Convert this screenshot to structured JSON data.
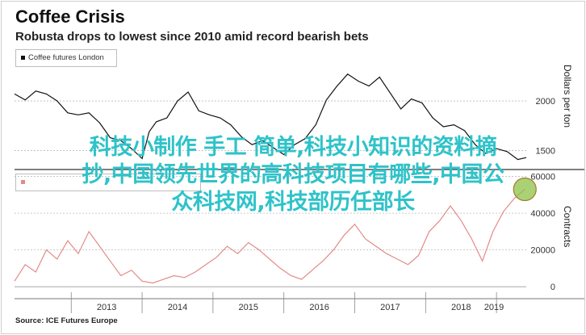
{
  "header": {
    "title": "Coffee Crisis",
    "subtitle": "Robusta drops to lowest since 2010 amid record bearish bets",
    "source": "Source: ICE Futures Europe"
  },
  "overlay": {
    "lines": [
      "科技小制作 手工 简单,科技小知识的资料摘",
      "抄,中国领先世界的高科技项目有哪些,中国公",
      "众科技网,科技部历任部长"
    ]
  },
  "colors": {
    "price_line": "#111111",
    "contracts_line": "#e38a8a",
    "overlay_text": "#2ec3c9",
    "highlight_circle": "#8fc24a"
  },
  "chart_data": [
    {
      "type": "line",
      "series": [
        {
          "name": "Coffee futures London",
          "x": [
            2012.2,
            2012.35,
            2012.5,
            2012.65,
            2012.8,
            2012.95,
            2013.1,
            2013.25,
            2013.4,
            2013.55,
            2013.7,
            2013.85,
            2014.0,
            2014.1,
            2014.2,
            2014.35,
            2014.5,
            2014.65,
            2014.8,
            2014.95,
            2015.1,
            2015.25,
            2015.4,
            2015.55,
            2015.7,
            2015.85,
            2016.0,
            2016.15,
            2016.3,
            2016.45,
            2016.6,
            2016.75,
            2016.9,
            2017.05,
            2017.2,
            2017.35,
            2017.5,
            2017.65,
            2017.8,
            2017.95,
            2018.1,
            2018.25,
            2018.4,
            2018.55,
            2018.7,
            2018.85,
            2019.0,
            2019.15,
            2019.3,
            2019.42
          ],
          "values": [
            2070,
            2010,
            2100,
            2070,
            2000,
            1880,
            1860,
            1880,
            1780,
            1630,
            1600,
            1520,
            1420,
            1690,
            1790,
            1830,
            2000,
            2090,
            1900,
            1860,
            1830,
            1760,
            1640,
            1560,
            1600,
            1530,
            1460,
            1560,
            1620,
            1760,
            2010,
            2150,
            2270,
            2200,
            2150,
            2240,
            2080,
            1920,
            2020,
            1980,
            1830,
            1740,
            1760,
            1700,
            1560,
            1470,
            1520,
            1490,
            1410,
            1430
          ]
        }
      ],
      "ylabel": "Dollars per ton",
      "yticks": [
        1500,
        2000
      ],
      "ylim": [
        1350,
        2350
      ]
    },
    {
      "type": "line",
      "series": [
        {
          "name": "",
          "x": [
            2012.2,
            2012.35,
            2012.5,
            2012.65,
            2012.8,
            2012.95,
            2013.1,
            2013.25,
            2013.4,
            2013.55,
            2013.7,
            2013.85,
            2014.0,
            2014.15,
            2014.3,
            2014.45,
            2014.6,
            2014.75,
            2014.9,
            2015.05,
            2015.2,
            2015.35,
            2015.5,
            2015.65,
            2015.8,
            2015.95,
            2016.1,
            2016.25,
            2016.4,
            2016.55,
            2016.7,
            2016.85,
            2017.0,
            2017.15,
            2017.3,
            2017.45,
            2017.6,
            2017.75,
            2017.9,
            2018.05,
            2018.2,
            2018.35,
            2018.5,
            2018.65,
            2018.8,
            2018.95,
            2019.1,
            2019.25,
            2019.4
          ],
          "values": [
            3000,
            12000,
            8000,
            20000,
            15000,
            25000,
            18000,
            30000,
            22000,
            14000,
            6000,
            9000,
            3000,
            2000,
            4000,
            6000,
            5000,
            8000,
            12000,
            16000,
            22000,
            18000,
            24000,
            20000,
            15000,
            10000,
            6000,
            4000,
            9000,
            14000,
            20000,
            28000,
            34000,
            26000,
            22000,
            18000,
            15000,
            12000,
            17000,
            30000,
            36000,
            44000,
            36000,
            26000,
            14000,
            30000,
            41000,
            48000,
            53000
          ]
        }
      ],
      "ylabel": "Contracts",
      "yticks": [
        0,
        20000,
        40000,
        60000
      ],
      "ylim": [
        -3000,
        62000
      ]
    }
  ],
  "xaxis": {
    "ticks": [
      "2013",
      "2014",
      "2015",
      "2016",
      "2017",
      "2018",
      "2019"
    ],
    "range": [
      2012.2,
      2019.42
    ]
  }
}
